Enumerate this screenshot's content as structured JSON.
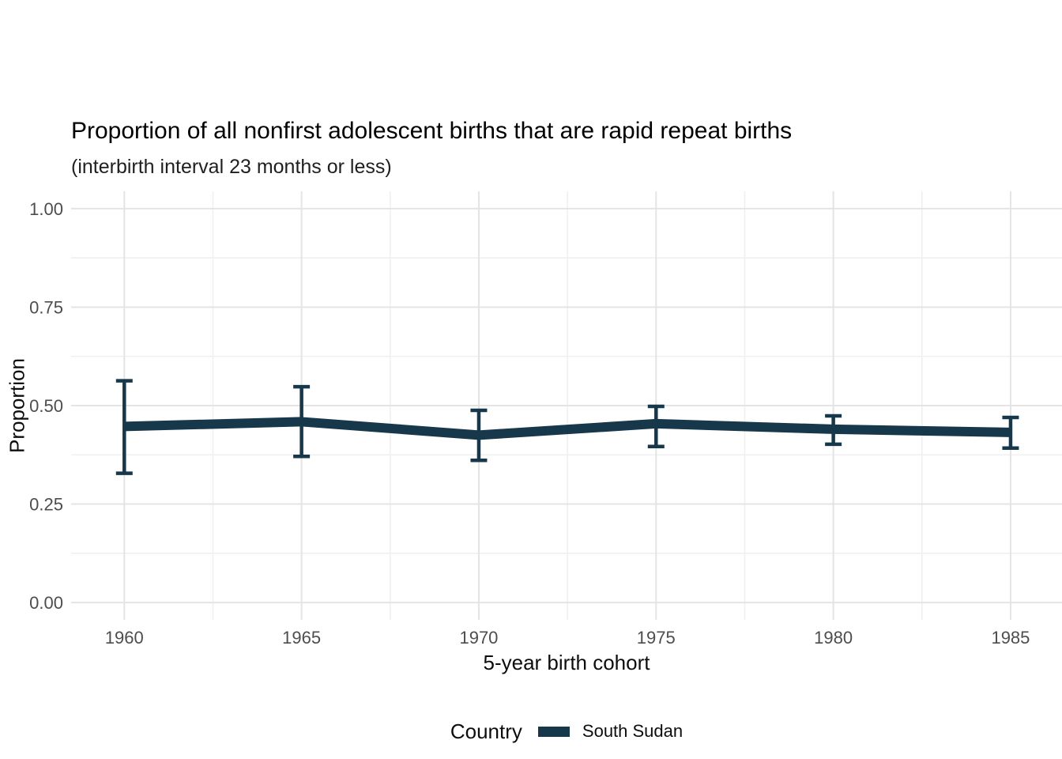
{
  "page": {
    "background": "#ffffff"
  },
  "chart_data": {
    "type": "line",
    "title": "Proportion of all nonfirst adolescent births that are rapid repeat births",
    "subtitle": "(interbirth interval 23 months or less)",
    "xlabel": "5-year birth cohort",
    "ylabel": "Proportion",
    "categories": [
      1960,
      1965,
      1970,
      1975,
      1980,
      1985
    ],
    "series": [
      {
        "name": "South Sudan",
        "color": "#17384a",
        "values": [
          0.447,
          0.459,
          0.425,
          0.454,
          0.44,
          0.432
        ],
        "ci_lower": [
          0.328,
          0.371,
          0.361,
          0.396,
          0.402,
          0.392
        ],
        "ci_upper": [
          0.563,
          0.548,
          0.488,
          0.498,
          0.474,
          0.47
        ]
      }
    ],
    "x_tick_values": [
      1960,
      1965,
      1970,
      1975,
      1980,
      1985
    ],
    "x_tick_labels": [
      "1960",
      "1965",
      "1970",
      "1975",
      "1980",
      "1985"
    ],
    "y_tick_values": [
      0,
      0.25,
      0.5,
      0.75,
      1.0
    ],
    "y_tick_labels": [
      "0.00",
      "0.25",
      "0.50",
      "0.75",
      "1.00"
    ],
    "xlim": [
      1958.5,
      1986.45
    ],
    "ylim": [
      -0.044,
      1.044
    ],
    "grid": {
      "major": true,
      "minor": true
    },
    "legend": {
      "title": "Country",
      "position": "bottom"
    }
  },
  "colors": {
    "series_line": "#17384a",
    "grid_major": "#e4e4e4",
    "grid_minor": "#f0f0f0",
    "tick_label": "#4d4d4d",
    "title_text": "#000000",
    "axis_title_text": "#0d0d0d"
  }
}
